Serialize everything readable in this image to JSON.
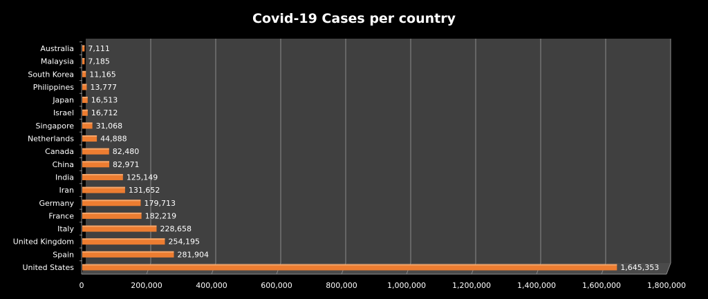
{
  "chart_data": {
    "type": "bar",
    "orientation": "horizontal",
    "style": "3d",
    "title": "Covid-19 Cases per country",
    "xlabel": "",
    "ylabel": "",
    "xlim": [
      0,
      1800000
    ],
    "grid": true,
    "legend": "none",
    "x_ticks": [
      "0",
      "200,000",
      "400,000",
      "600,000",
      "800,000",
      "1,000,000",
      "1,200,000",
      "1,400,000",
      "1,600,000",
      "1,800,000"
    ],
    "categories": [
      "Australia",
      "Malaysia",
      "South Korea",
      "Philippines",
      "Japan",
      "Israel",
      "Singapore",
      "Netherlands",
      "Canada",
      "China",
      "India",
      "Iran",
      "Germany",
      "France",
      "Italy",
      "United Kingdom",
      "Spain",
      "United States"
    ],
    "values": [
      7111,
      7185,
      11165,
      13777,
      16513,
      16712,
      31068,
      44888,
      82480,
      82971,
      125149,
      131652,
      179713,
      182219,
      228658,
      254195,
      281904,
      1645353
    ],
    "data_labels": [
      "7,111",
      "7,185",
      "11,165",
      "13,777",
      "16,513",
      "16,712",
      "31,068",
      "44,888",
      "82,480",
      "82,971",
      "125,149",
      "131,652",
      "179,713",
      "182,219",
      "228,658",
      "254,195",
      "281,904",
      "1,645,353"
    ],
    "colors": {
      "bar": "#ed7d31",
      "wall": "#404040",
      "floor": "#4a4a4a",
      "grid": "#8c8c8c",
      "background": "#000000"
    }
  }
}
